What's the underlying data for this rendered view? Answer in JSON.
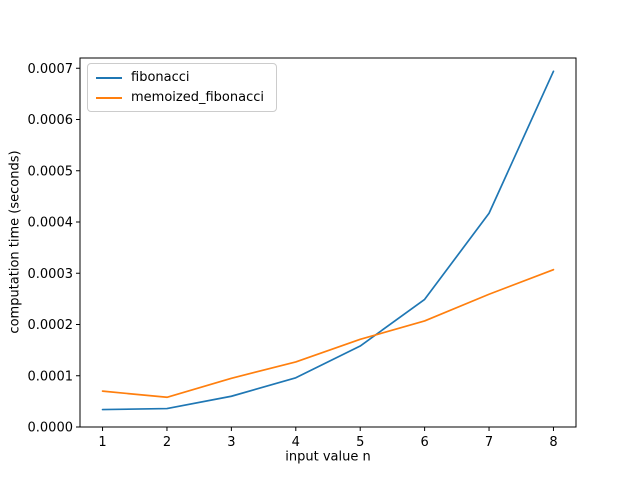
{
  "figure": {
    "background": "#ffffff",
    "text_color": "#000000"
  },
  "chart_data": {
    "type": "line",
    "title": "",
    "xlabel": "input value n",
    "ylabel": "computation time (seconds)",
    "x": [
      1,
      2,
      3,
      4,
      5,
      6,
      7,
      8
    ],
    "series": [
      {
        "name": "fibonacci",
        "color": "#1f77b4",
        "values": [
          3.4e-05,
          3.6e-05,
          6e-05,
          9.6e-05,
          0.000158,
          0.000249,
          0.000417,
          0.000694
        ]
      },
      {
        "name": "memoized_fibonacci",
        "color": "#ff7f0e",
        "values": [
          7e-05,
          5.8e-05,
          9.5e-05,
          0.000127,
          0.000171,
          0.000207,
          0.000259,
          0.000307
        ]
      }
    ],
    "xlim": [
      0.65,
      8.35
    ],
    "ylim": [
      0,
      0.00072
    ],
    "xticks": {
      "values": [
        1,
        2,
        3,
        4,
        5,
        6,
        7,
        8
      ],
      "labels": [
        "1",
        "2",
        "3",
        "4",
        "5",
        "6",
        "7",
        "8"
      ]
    },
    "yticks": {
      "values": [
        0,
        0.0001,
        0.0002,
        0.0003,
        0.0004,
        0.0005,
        0.0006,
        0.0007
      ],
      "labels": [
        "0.0000",
        "0.0001",
        "0.0002",
        "0.0003",
        "0.0004",
        "0.0005",
        "0.0006",
        "0.0007"
      ]
    },
    "grid": false,
    "legend_position": "upper-left"
  }
}
